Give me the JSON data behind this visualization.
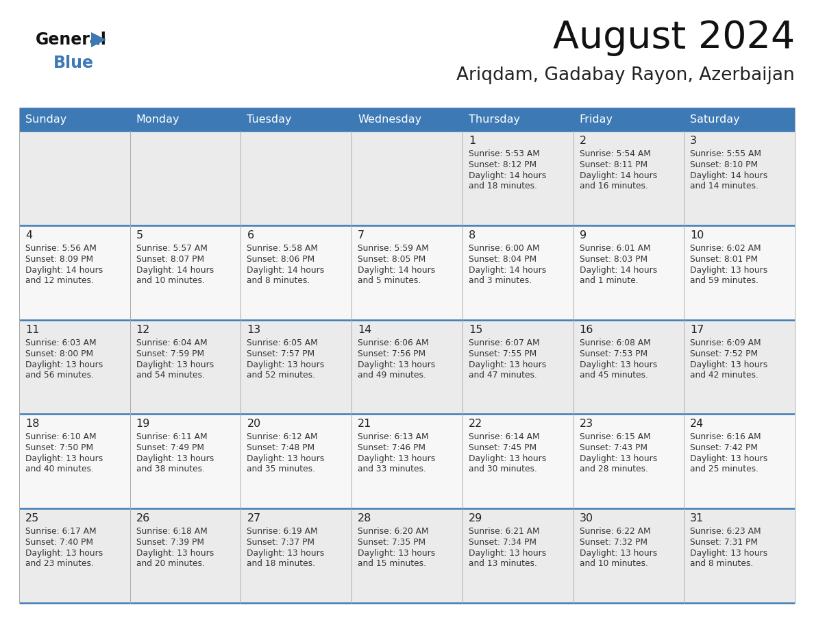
{
  "title": "August 2024",
  "subtitle": "Ariqdam, Gadabay Rayon, Azerbaijan",
  "header_color": "#3d7ab5",
  "header_text_color": "#ffffff",
  "border_color": "#3d7ab5",
  "day_headers": [
    "Sunday",
    "Monday",
    "Tuesday",
    "Wednesday",
    "Thursday",
    "Friday",
    "Saturday"
  ],
  "days": [
    {
      "day": 1,
      "col": 4,
      "row": 0,
      "sunrise": "5:53 AM",
      "sunset": "8:12 PM",
      "daylight": "14 hours and 18 minutes."
    },
    {
      "day": 2,
      "col": 5,
      "row": 0,
      "sunrise": "5:54 AM",
      "sunset": "8:11 PM",
      "daylight": "14 hours and 16 minutes."
    },
    {
      "day": 3,
      "col": 6,
      "row": 0,
      "sunrise": "5:55 AM",
      "sunset": "8:10 PM",
      "daylight": "14 hours and 14 minutes."
    },
    {
      "day": 4,
      "col": 0,
      "row": 1,
      "sunrise": "5:56 AM",
      "sunset": "8:09 PM",
      "daylight": "14 hours and 12 minutes."
    },
    {
      "day": 5,
      "col": 1,
      "row": 1,
      "sunrise": "5:57 AM",
      "sunset": "8:07 PM",
      "daylight": "14 hours and 10 minutes."
    },
    {
      "day": 6,
      "col": 2,
      "row": 1,
      "sunrise": "5:58 AM",
      "sunset": "8:06 PM",
      "daylight": "14 hours and 8 minutes."
    },
    {
      "day": 7,
      "col": 3,
      "row": 1,
      "sunrise": "5:59 AM",
      "sunset": "8:05 PM",
      "daylight": "14 hours and 5 minutes."
    },
    {
      "day": 8,
      "col": 4,
      "row": 1,
      "sunrise": "6:00 AM",
      "sunset": "8:04 PM",
      "daylight": "14 hours and 3 minutes."
    },
    {
      "day": 9,
      "col": 5,
      "row": 1,
      "sunrise": "6:01 AM",
      "sunset": "8:03 PM",
      "daylight": "14 hours and 1 minute."
    },
    {
      "day": 10,
      "col": 6,
      "row": 1,
      "sunrise": "6:02 AM",
      "sunset": "8:01 PM",
      "daylight": "13 hours and 59 minutes."
    },
    {
      "day": 11,
      "col": 0,
      "row": 2,
      "sunrise": "6:03 AM",
      "sunset": "8:00 PM",
      "daylight": "13 hours and 56 minutes."
    },
    {
      "day": 12,
      "col": 1,
      "row": 2,
      "sunrise": "6:04 AM",
      "sunset": "7:59 PM",
      "daylight": "13 hours and 54 minutes."
    },
    {
      "day": 13,
      "col": 2,
      "row": 2,
      "sunrise": "6:05 AM",
      "sunset": "7:57 PM",
      "daylight": "13 hours and 52 minutes."
    },
    {
      "day": 14,
      "col": 3,
      "row": 2,
      "sunrise": "6:06 AM",
      "sunset": "7:56 PM",
      "daylight": "13 hours and 49 minutes."
    },
    {
      "day": 15,
      "col": 4,
      "row": 2,
      "sunrise": "6:07 AM",
      "sunset": "7:55 PM",
      "daylight": "13 hours and 47 minutes."
    },
    {
      "day": 16,
      "col": 5,
      "row": 2,
      "sunrise": "6:08 AM",
      "sunset": "7:53 PM",
      "daylight": "13 hours and 45 minutes."
    },
    {
      "day": 17,
      "col": 6,
      "row": 2,
      "sunrise": "6:09 AM",
      "sunset": "7:52 PM",
      "daylight": "13 hours and 42 minutes."
    },
    {
      "day": 18,
      "col": 0,
      "row": 3,
      "sunrise": "6:10 AM",
      "sunset": "7:50 PM",
      "daylight": "13 hours and 40 minutes."
    },
    {
      "day": 19,
      "col": 1,
      "row": 3,
      "sunrise": "6:11 AM",
      "sunset": "7:49 PM",
      "daylight": "13 hours and 38 minutes."
    },
    {
      "day": 20,
      "col": 2,
      "row": 3,
      "sunrise": "6:12 AM",
      "sunset": "7:48 PM",
      "daylight": "13 hours and 35 minutes."
    },
    {
      "day": 21,
      "col": 3,
      "row": 3,
      "sunrise": "6:13 AM",
      "sunset": "7:46 PM",
      "daylight": "13 hours and 33 minutes."
    },
    {
      "day": 22,
      "col": 4,
      "row": 3,
      "sunrise": "6:14 AM",
      "sunset": "7:45 PM",
      "daylight": "13 hours and 30 minutes."
    },
    {
      "day": 23,
      "col": 5,
      "row": 3,
      "sunrise": "6:15 AM",
      "sunset": "7:43 PM",
      "daylight": "13 hours and 28 minutes."
    },
    {
      "day": 24,
      "col": 6,
      "row": 3,
      "sunrise": "6:16 AM",
      "sunset": "7:42 PM",
      "daylight": "13 hours and 25 minutes."
    },
    {
      "day": 25,
      "col": 0,
      "row": 4,
      "sunrise": "6:17 AM",
      "sunset": "7:40 PM",
      "daylight": "13 hours and 23 minutes."
    },
    {
      "day": 26,
      "col": 1,
      "row": 4,
      "sunrise": "6:18 AM",
      "sunset": "7:39 PM",
      "daylight": "13 hours and 20 minutes."
    },
    {
      "day": 27,
      "col": 2,
      "row": 4,
      "sunrise": "6:19 AM",
      "sunset": "7:37 PM",
      "daylight": "13 hours and 18 minutes."
    },
    {
      "day": 28,
      "col": 3,
      "row": 4,
      "sunrise": "6:20 AM",
      "sunset": "7:35 PM",
      "daylight": "13 hours and 15 minutes."
    },
    {
      "day": 29,
      "col": 4,
      "row": 4,
      "sunrise": "6:21 AM",
      "sunset": "7:34 PM",
      "daylight": "13 hours and 13 minutes."
    },
    {
      "day": 30,
      "col": 5,
      "row": 4,
      "sunrise": "6:22 AM",
      "sunset": "7:32 PM",
      "daylight": "13 hours and 10 minutes."
    },
    {
      "day": 31,
      "col": 6,
      "row": 4,
      "sunrise": "6:23 AM",
      "sunset": "7:31 PM",
      "daylight": "13 hours and 8 minutes."
    }
  ],
  "num_rows": 5,
  "num_cols": 7,
  "logo_triangle_color": "#3d7ab5",
  "row_bg_odd": "#ebebeb",
  "row_bg_even": "#f7f7f7",
  "cell_text_color": "#333333",
  "day_num_color": "#222222"
}
